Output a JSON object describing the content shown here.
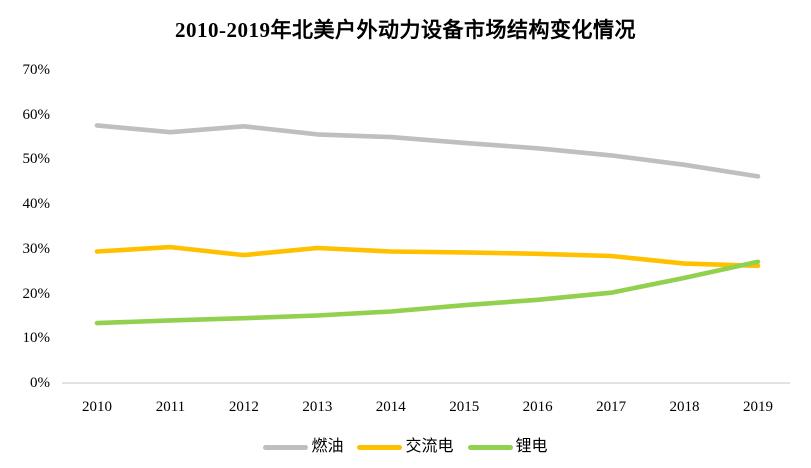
{
  "title": "2010-2019年北美户外动力设备市场结构变化情况",
  "chart_data": {
    "type": "line",
    "title": "2010-2019年北美户外动力设备市场结构变化情况",
    "x": [
      "2010",
      "2011",
      "2012",
      "2013",
      "2014",
      "2015",
      "2016",
      "2017",
      "2018",
      "2019"
    ],
    "series": [
      {
        "name": "燃油",
        "color": "#BFBFBF",
        "values": [
          57.6,
          56.1,
          57.4,
          55.6,
          55.0,
          53.7,
          52.5,
          50.9,
          48.8,
          46.2
        ]
      },
      {
        "name": "交流电",
        "color": "#FFC000",
        "values": [
          29.4,
          30.4,
          28.6,
          30.2,
          29.4,
          29.2,
          28.9,
          28.4,
          26.7,
          26.2
        ]
      },
      {
        "name": "锂电",
        "color": "#92D050",
        "values": [
          13.4,
          14.0,
          14.5,
          15.1,
          16.0,
          17.4,
          18.6,
          20.2,
          23.5,
          27.1
        ]
      }
    ],
    "xlabel": "",
    "ylabel": "",
    "ylim": [
      0,
      70
    ],
    "ytick_values": [
      0,
      10,
      20,
      30,
      40,
      50,
      60,
      70
    ],
    "ytick_labels": [
      "0%",
      "10%",
      "20%",
      "30%",
      "40%",
      "50%",
      "60%",
      "70%"
    ],
    "grid": false,
    "legend_position": "bottom",
    "axis_line_color": "#D9D9D9",
    "background_color": "#FFFFFF"
  }
}
